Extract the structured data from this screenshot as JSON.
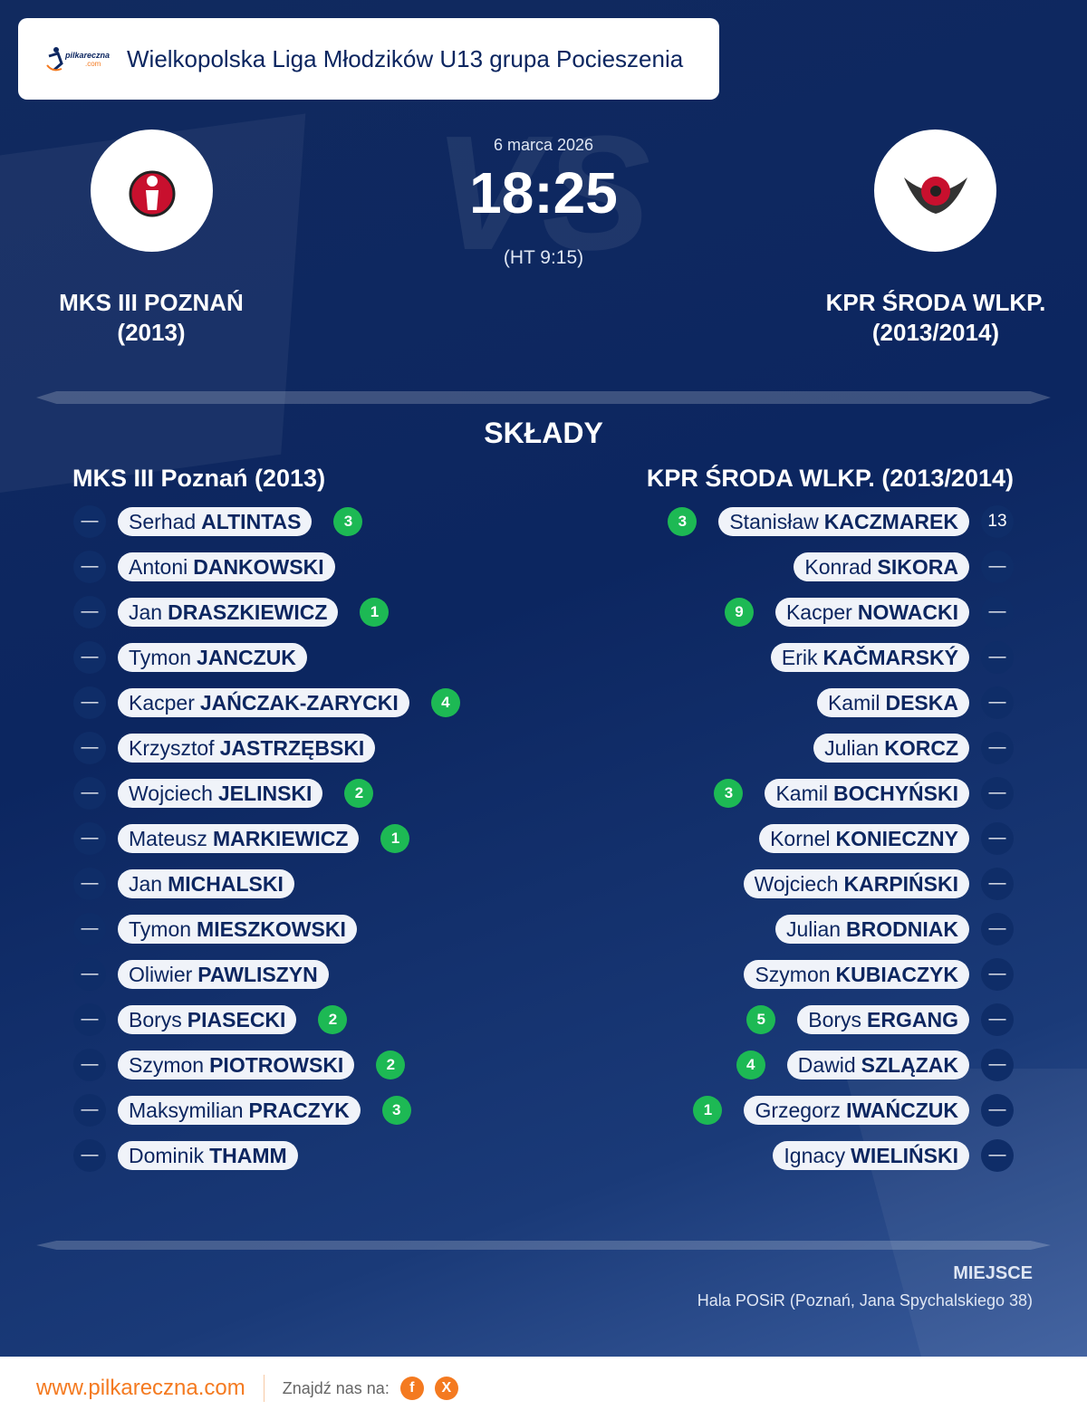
{
  "header": {
    "title": "Wielkopolska Liga Młodzików U13 grupa Pocieszenia",
    "logo_text": "pilkareczna",
    "logo_sub": ".com"
  },
  "match": {
    "date": "6 marca 2026",
    "score": "18:25",
    "halftime": "(HT 9:15)",
    "vs_watermark": "VS"
  },
  "home": {
    "name_line1": "MKS III POZNAŃ",
    "name_line2": "(2013)",
    "lineup_title": "MKS III Poznań (2013)",
    "players": [
      {
        "num": "—",
        "first": "Serhad",
        "last": "ALTINTAS",
        "goals": "3"
      },
      {
        "num": "—",
        "first": "Antoni",
        "last": "DANKOWSKI",
        "goals": ""
      },
      {
        "num": "—",
        "first": "Jan",
        "last": "DRASZKIEWICZ",
        "goals": "1"
      },
      {
        "num": "—",
        "first": "Tymon",
        "last": "JANCZUK",
        "goals": ""
      },
      {
        "num": "—",
        "first": "Kacper",
        "last": "JAŃCZAK-ZARYCKI",
        "goals": "4"
      },
      {
        "num": "—",
        "first": "Krzysztof",
        "last": "JASTRZĘBSKI",
        "goals": ""
      },
      {
        "num": "—",
        "first": "Wojciech",
        "last": "JELINSKI",
        "goals": "2"
      },
      {
        "num": "—",
        "first": "Mateusz",
        "last": "MARKIEWICZ",
        "goals": "1"
      },
      {
        "num": "—",
        "first": "Jan",
        "last": "MICHALSKI",
        "goals": ""
      },
      {
        "num": "—",
        "first": "Tymon",
        "last": "MIESZKOWSKI",
        "goals": ""
      },
      {
        "num": "—",
        "first": "Oliwier",
        "last": "PAWLISZYN",
        "goals": ""
      },
      {
        "num": "—",
        "first": "Borys",
        "last": "PIASECKI",
        "goals": "2"
      },
      {
        "num": "—",
        "first": "Szymon",
        "last": "PIOTROWSKI",
        "goals": "2"
      },
      {
        "num": "—",
        "first": "Maksymilian",
        "last": "PRACZYK",
        "goals": "3"
      },
      {
        "num": "—",
        "first": "Dominik",
        "last": "THAMM",
        "goals": ""
      }
    ]
  },
  "away": {
    "name_line1": "KPR ŚRODA WLKP.",
    "name_line2": "(2013/2014)",
    "lineup_title": "KPR ŚRODA WLKP. (2013/2014)",
    "players": [
      {
        "num": "13",
        "first": "Stanisław",
        "last": "KACZMAREK",
        "goals": "3"
      },
      {
        "num": "—",
        "first": "Konrad",
        "last": "SIKORA",
        "goals": ""
      },
      {
        "num": "—",
        "first": "Kacper",
        "last": "NOWACKI",
        "goals": "9"
      },
      {
        "num": "—",
        "first": "Erik",
        "last": "KAČMARSKÝ",
        "goals": ""
      },
      {
        "num": "—",
        "first": "Kamil",
        "last": "DESKA",
        "goals": ""
      },
      {
        "num": "—",
        "first": "Julian",
        "last": "KORCZ",
        "goals": ""
      },
      {
        "num": "—",
        "first": "Kamil",
        "last": "BOCHYŃSKI",
        "goals": "3"
      },
      {
        "num": "—",
        "first": "Kornel",
        "last": "KONIECZNY",
        "goals": ""
      },
      {
        "num": "—",
        "first": "Wojciech",
        "last": "KARPIŃSKI",
        "goals": ""
      },
      {
        "num": "—",
        "first": "Julian",
        "last": "BRODNIAK",
        "goals": ""
      },
      {
        "num": "—",
        "first": "Szymon",
        "last": "KUBIACZYK",
        "goals": ""
      },
      {
        "num": "—",
        "first": "Borys",
        "last": "ERGANG",
        "goals": "5"
      },
      {
        "num": "—",
        "first": "Dawid",
        "last": "SZLĄZAK",
        "goals": "4"
      },
      {
        "num": "—",
        "first": "Grzegorz",
        "last": "IWAŃCZUK",
        "goals": "1"
      },
      {
        "num": "—",
        "first": "Ignacy",
        "last": "WIELIŃSKI",
        "goals": ""
      }
    ]
  },
  "section_title": "SKŁADY",
  "venue": {
    "label": "MIEJSCE",
    "value": "Hala POSiR (Poznań, Jana Spychalskiego 38)"
  },
  "footer": {
    "site": "www.pilkareczna.com",
    "find_us": "Znajdź nas na:",
    "facebook": "f",
    "x": "X"
  },
  "colors": {
    "accent": "#f47a20",
    "goal": "#1db954",
    "navy": "#0c2660"
  }
}
